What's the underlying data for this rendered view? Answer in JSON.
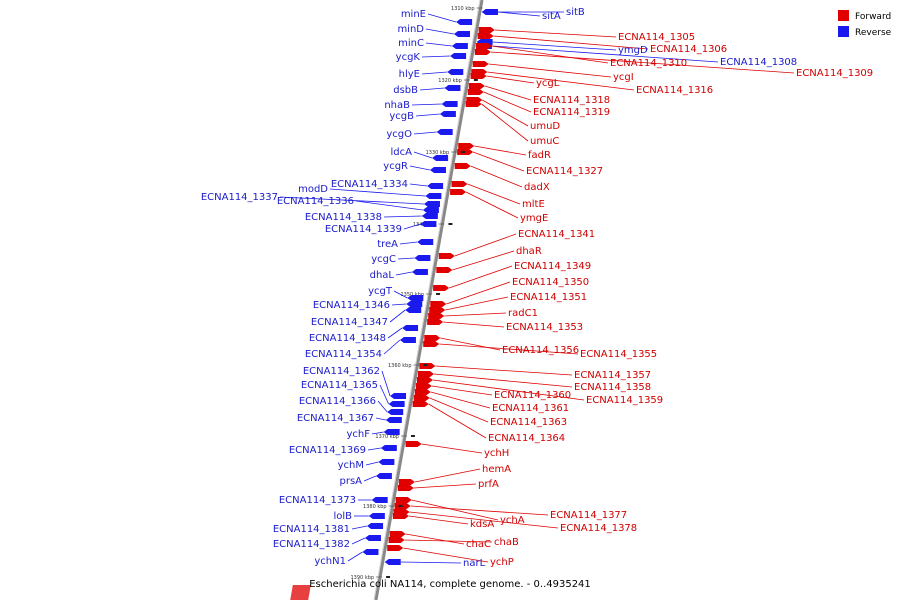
{
  "caption": "Escherichia coli NA114, complete genome. - 0..4935241",
  "legend": [
    {
      "label": "Forward",
      "color": "#e00000"
    },
    {
      "label": "Reverse",
      "color": "#1a1aee"
    }
  ],
  "ticks": [
    "1310 kbp",
    "1320 kbp",
    "1330 kbp",
    "1340 kbp",
    "1350 kbp",
    "1360 kbp",
    "1370 kbp",
    "1380 kbp",
    "1390 kbp"
  ],
  "reverse_genes": [
    "minE",
    "minD",
    "minC",
    "ycgK",
    "hlyE",
    "dsbB",
    "nhaB",
    "ycgB",
    "ycgO",
    "ldcA",
    "ycgR",
    "ECNA114_1334",
    "modD",
    "ECNA114_1337",
    "ECNA114_1336",
    "ECNA114_1338",
    "ECNA114_1339",
    "treA",
    "ycgC",
    "dhaL",
    "ycgT",
    "ECNA114_1346",
    "ECNA114_1347",
    "ECNA114_1348",
    "ECNA114_1354",
    "ECNA114_1362",
    "ECNA114_1365",
    "ECNA114_1366",
    "ECNA114_1367",
    "ychF",
    "ECNA114_1369",
    "ychM",
    "prsA",
    "ECNA114_1373",
    "lolB",
    "ECNA114_1381",
    "ECNA114_1382",
    "ychN1",
    "sitA",
    "sitB",
    "ymgD",
    "ECNA114_1308",
    "narL"
  ],
  "forward_genes": [
    "ECNA114_1305",
    "ECNA114_1306",
    "ECNA114_1310",
    "ECNA114_1309",
    "ycgI",
    "ycgL",
    "ECNA114_1316",
    "ECNA114_1318",
    "ECNA114_1319",
    "umuD",
    "umuC",
    "fadR",
    "ECNA114_1327",
    "dadX",
    "mltE",
    "ymgE",
    "ECNA114_1341",
    "dhaR",
    "ECNA114_1349",
    "ECNA114_1350",
    "ECNA114_1351",
    "radC1",
    "ECNA114_1353",
    "ECNA114_1356",
    "ECNA114_1355",
    "ECNA114_1357",
    "ECNA114_1358",
    "ECNA114_1359",
    "ECNA114_1360",
    "ECNA114_1361",
    "ECNA114_1363",
    "ECNA114_1364",
    "ychH",
    "hemA",
    "prfA",
    "ychA",
    "ECNA114_1377",
    "ECNA114_1378",
    "kdsA",
    "chaC",
    "chaB",
    "ychP"
  ]
}
